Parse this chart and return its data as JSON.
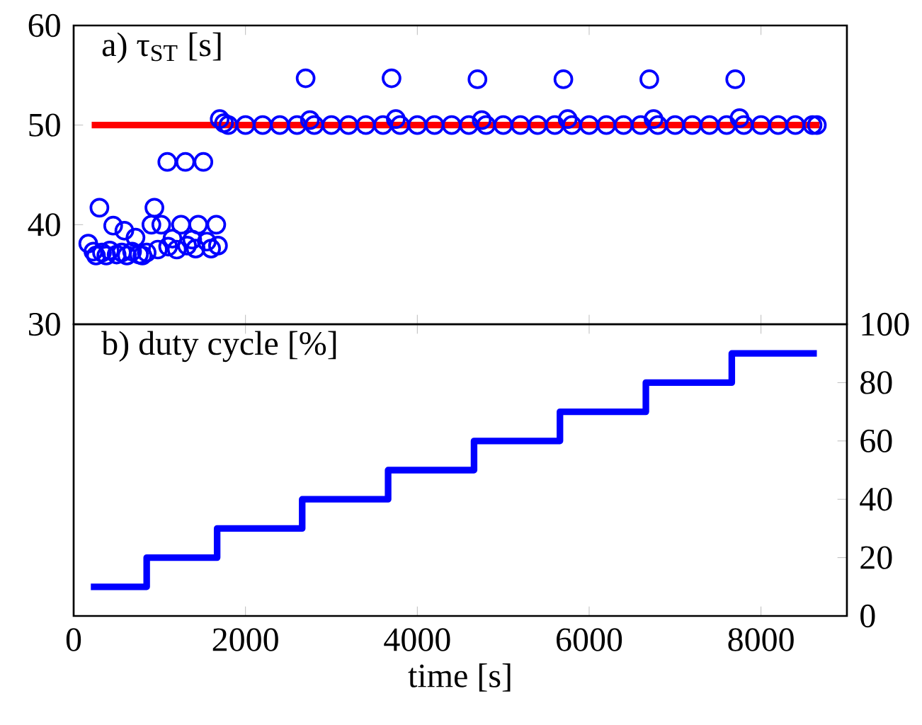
{
  "chart_data": [
    {
      "type": "scatter",
      "title": "a) τ$_{ST}$ [s]",
      "xlim": [
        0,
        9000
      ],
      "xticks": [
        0,
        2000,
        4000,
        6000,
        8000
      ],
      "ylim": [
        30,
        60
      ],
      "yticks": [
        30,
        40,
        50,
        60
      ],
      "tick_labels": "y",
      "grid": false,
      "series": [
        {
          "color": "#0000ff",
          "marker": "circle",
          "x": [
            170,
            300,
            230,
            260,
            330,
            380,
            420,
            460,
            500,
            560,
            590,
            620,
            680,
            720,
            760,
            800,
            850,
            905,
            940,
            980,
            1020,
            1090,
            1100,
            1150,
            1200,
            1250,
            1300,
            1320,
            1380,
            1420,
            1450,
            1510,
            1550,
            1600,
            1660,
            1680,
            1700,
            1750,
            1800,
            2000,
            2200,
            2400,
            2600,
            2700,
            2750,
            2800,
            3000,
            3200,
            3400,
            3600,
            3700,
            3750,
            3800,
            4000,
            4200,
            4400,
            4600,
            4700,
            4750,
            4800,
            5000,
            5200,
            5400,
            5600,
            5700,
            5750,
            5800,
            6000,
            6200,
            6400,
            6600,
            6700,
            6750,
            6800,
            7000,
            7200,
            7400,
            7600,
            7700,
            7750,
            7800,
            8000,
            8200,
            8400,
            8600,
            8650
          ],
          "values": [
            38.1,
            41.7,
            37.3,
            36.9,
            37.2,
            36.9,
            37.4,
            39.9,
            37.0,
            37.2,
            39.4,
            36.9,
            37.3,
            38.7,
            37.0,
            36.9,
            37.2,
            40.0,
            41.7,
            37.5,
            40.0,
            46.3,
            37.8,
            38.6,
            37.5,
            40.0,
            46.3,
            37.9,
            38.5,
            37.6,
            40.0,
            46.3,
            38.3,
            37.6,
            40.0,
            37.9,
            50.6,
            50.2,
            50,
            50,
            50,
            50,
            50,
            54.7,
            50.5,
            50,
            50,
            50,
            50,
            50,
            54.7,
            50.6,
            50,
            50,
            50,
            50,
            50,
            54.6,
            50.5,
            50,
            50,
            50,
            50,
            50,
            54.6,
            50.6,
            50,
            50,
            50,
            50,
            50,
            54.6,
            50.6,
            50,
            50,
            50,
            50,
            50,
            54.6,
            50.7,
            50,
            50,
            50,
            50,
            50,
            50
          ]
        },
        {
          "type": "line",
          "color": "#ff0000",
          "x": [
            210,
            8680
          ],
          "values": [
            50,
            50
          ]
        }
      ]
    },
    {
      "type": "step",
      "title": "b) duty cycle [%]",
      "xlim": [
        0,
        9000
      ],
      "xticks": [
        0,
        2000,
        4000,
        6000,
        8000
      ],
      "xlabel": "time [s]",
      "y2lim": [
        0,
        100
      ],
      "y2ticks": [
        0,
        20,
        40,
        60,
        80,
        100
      ],
      "grid": false,
      "series": [
        {
          "axis": "y2",
          "color": "#0000ff",
          "x": [
            200,
            850,
            1670,
            2660,
            3660,
            4660,
            5660,
            6660,
            7660,
            8650
          ],
          "values": [
            10,
            20,
            30,
            40,
            50,
            60,
            70,
            80,
            90,
            90
          ]
        }
      ]
    }
  ]
}
